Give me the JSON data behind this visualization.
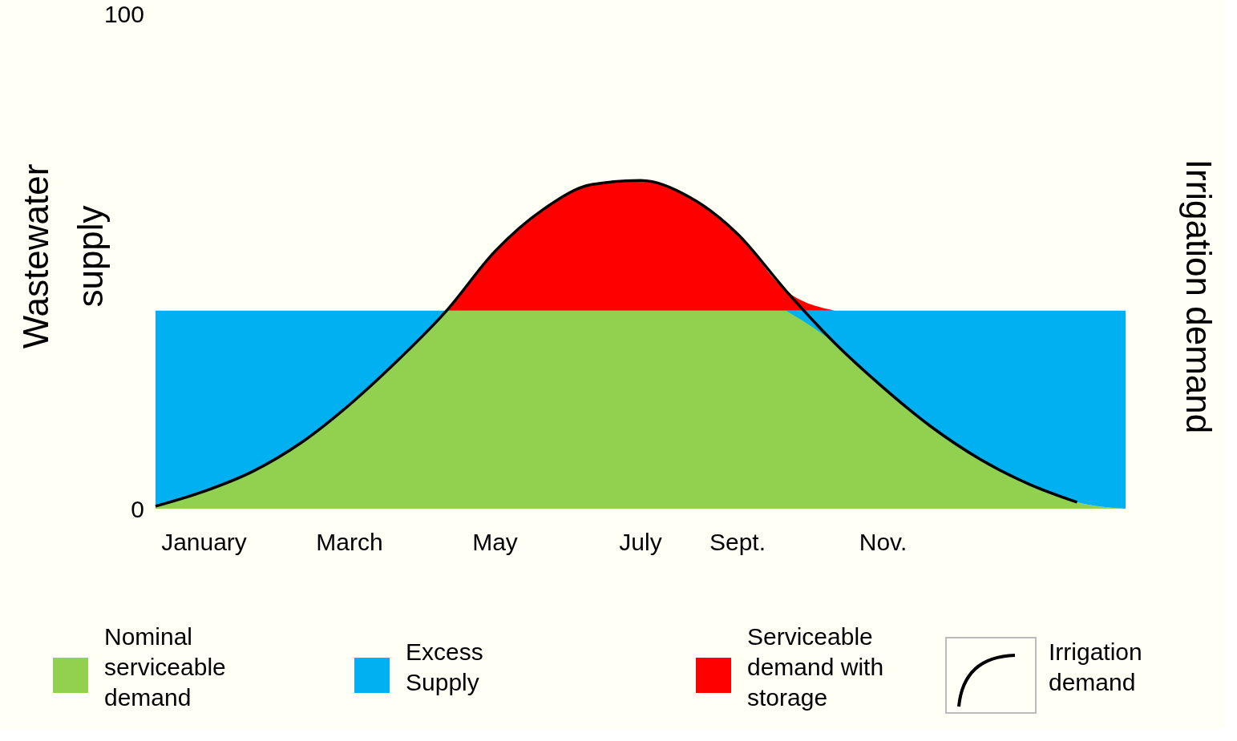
{
  "chart_data": {
    "type": "area",
    "stacked": true,
    "ylabel": "Wastewater supply",
    "y2label": "Irrigation demand",
    "categories": [
      null,
      "January",
      null,
      null,
      "March",
      null,
      null,
      "May",
      null,
      null,
      "July",
      null,
      "Sept.",
      null,
      null,
      "Nov.",
      null,
      null,
      null,
      null,
      null
    ],
    "ylim": [
      0,
      100
    ],
    "yticks": [
      0,
      100
    ],
    "series": [
      {
        "name": "Nominal serviceable demand",
        "color": "#92d050",
        "values": [
          0.5,
          3.5,
          7.5,
          13.3,
          21,
          30,
          40,
          40,
          40,
          40,
          40,
          40,
          40,
          40,
          33.5,
          24.5,
          16.5,
          10,
          5,
          1.3,
          0
        ]
      },
      {
        "name": "Excess Supply",
        "color": "#00b0f0",
        "values": [
          39.5,
          36.5,
          32.5,
          26.7,
          19,
          10,
          0,
          null,
          null,
          null,
          null,
          null,
          null,
          0,
          6.5,
          15.5,
          23.5,
          30,
          35,
          38.7,
          40
        ]
      },
      {
        "name": "Serviceable demand with storage",
        "color": "#ff0000",
        "values": [
          null,
          null,
          null,
          null,
          null,
          null,
          0,
          12,
          20.5,
          25.5,
          26.3,
          23,
          15.5,
          4,
          0,
          null,
          null,
          null,
          null,
          null,
          null
        ]
      },
      {
        "name": "Irrigation demand",
        "type": "line",
        "color": "#000000",
        "values": [
          0.5,
          3.5,
          7.5,
          13.3,
          21,
          30,
          40,
          52,
          60.5,
          65.5,
          66.3,
          63,
          55.5,
          44,
          33.5,
          24.5,
          16.5,
          10,
          5,
          1.3,
          null
        ]
      }
    ],
    "grid": false,
    "legend": "bottom"
  }
}
